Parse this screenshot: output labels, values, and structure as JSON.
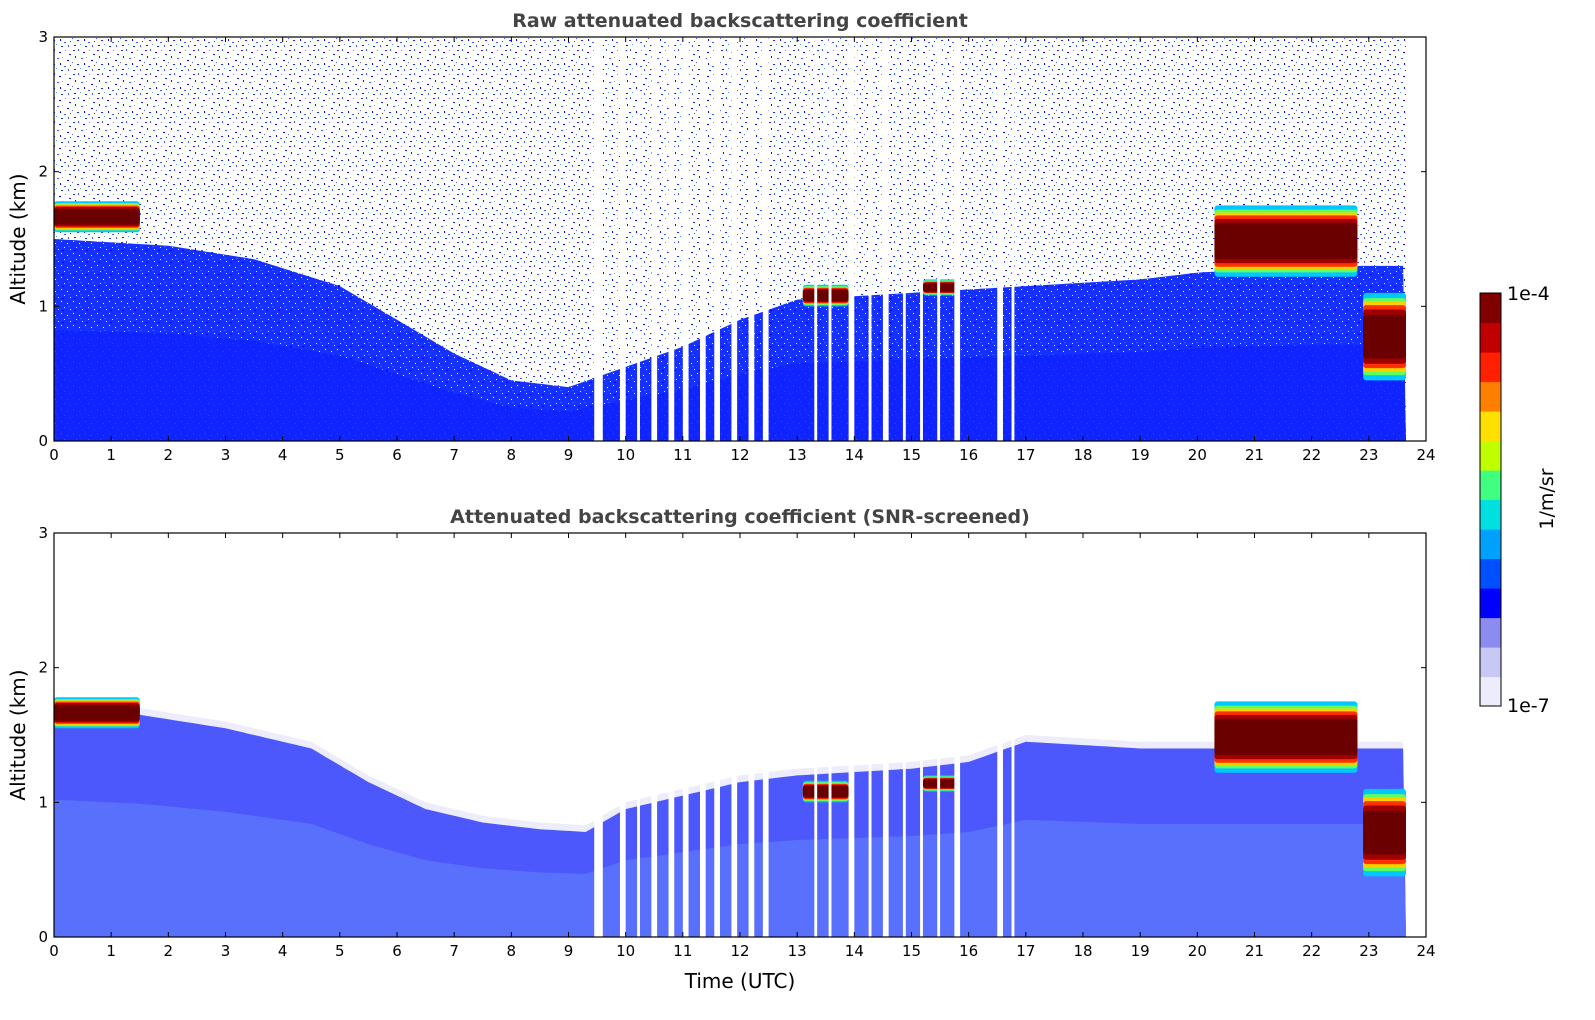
{
  "chart_data": [
    {
      "type": "heatmap",
      "title": "Raw attenuated backscattering coefficient",
      "xlabel": "",
      "ylabel": "Altitude (km)",
      "xlim": [
        0,
        24
      ],
      "ylim": [
        0,
        3
      ],
      "xticks": [
        "0",
        "1",
        "2",
        "3",
        "4",
        "5",
        "6",
        "7",
        "8",
        "9",
        "10",
        "11",
        "12",
        "13",
        "14",
        "15",
        "16",
        "17",
        "18",
        "19",
        "20",
        "21",
        "22",
        "23",
        "24"
      ],
      "yticks": [
        "0",
        "1",
        "2",
        "3"
      ],
      "data_end_hour": 23.65,
      "boundary_layer_top_km": [
        [
          0,
          1.5
        ],
        [
          2,
          1.45
        ],
        [
          3.5,
          1.35
        ],
        [
          5,
          1.15
        ],
        [
          6,
          0.9
        ],
        [
          7,
          0.65
        ],
        [
          8,
          0.45
        ],
        [
          9,
          0.4
        ],
        [
          10,
          0.55
        ],
        [
          11,
          0.7
        ],
        [
          12,
          0.9
        ],
        [
          13,
          1.05
        ],
        [
          15,
          1.1
        ],
        [
          17,
          1.15
        ],
        [
          19,
          1.2
        ],
        [
          20,
          1.25
        ],
        [
          22,
          1.3
        ],
        [
          23.65,
          1.3
        ]
      ],
      "cloud_layers": [
        {
          "start": 0.0,
          "end": 1.5,
          "base_km": 1.55,
          "top_km": 1.78,
          "level": "1e-4"
        },
        {
          "start": 13.1,
          "end": 13.9,
          "base_km": 1.0,
          "top_km": 1.16,
          "level": "1e-4"
        },
        {
          "start": 15.2,
          "end": 15.8,
          "base_km": 1.08,
          "top_km": 1.2,
          "level": "1e-4"
        },
        {
          "start": 20.3,
          "end": 22.8,
          "base_km": 1.22,
          "top_km": 1.75,
          "level": "1e-4"
        },
        {
          "start": 22.9,
          "end": 23.65,
          "base_km": 0.45,
          "top_km": 1.1,
          "level": "1e-4"
        }
      ],
      "missing_data_intervals": [
        [
          9.45,
          9.6
        ],
        [
          9.9,
          10.0
        ],
        [
          10.2,
          10.25
        ],
        [
          10.45,
          10.55
        ],
        [
          10.75,
          10.85
        ],
        [
          11.0,
          11.1
        ],
        [
          11.3,
          11.4
        ],
        [
          11.55,
          11.65
        ],
        [
          11.85,
          11.95
        ],
        [
          12.15,
          12.25
        ],
        [
          12.4,
          12.5
        ],
        [
          13.3,
          13.35
        ],
        [
          13.55,
          13.6
        ],
        [
          13.9,
          14.0
        ],
        [
          14.25,
          14.3
        ],
        [
          14.5,
          14.6
        ],
        [
          14.85,
          14.9
        ],
        [
          15.15,
          15.2
        ],
        [
          15.45,
          15.5
        ],
        [
          15.75,
          15.85
        ],
        [
          16.5,
          16.6
        ],
        [
          16.75,
          16.8
        ]
      ]
    },
    {
      "type": "heatmap",
      "title": "Attenuated backscattering coefficient (SNR-screened)",
      "xlabel": "Time (UTC)",
      "ylabel": "Altitude (km)",
      "xlim": [
        0,
        24
      ],
      "ylim": [
        0,
        3
      ],
      "xticks": [
        "0",
        "1",
        "2",
        "3",
        "4",
        "5",
        "6",
        "7",
        "8",
        "9",
        "10",
        "11",
        "12",
        "13",
        "14",
        "15",
        "16",
        "17",
        "18",
        "19",
        "20",
        "21",
        "22",
        "23",
        "24"
      ],
      "yticks": [
        "0",
        "1",
        "2",
        "3"
      ],
      "screened_top_km": [
        [
          0,
          1.7
        ],
        [
          1.5,
          1.65
        ],
        [
          3,
          1.55
        ],
        [
          4.5,
          1.4
        ],
        [
          5.5,
          1.15
        ],
        [
          6.5,
          0.95
        ],
        [
          7.5,
          0.85
        ],
        [
          8.5,
          0.8
        ],
        [
          9.3,
          0.78
        ],
        [
          10,
          0.95
        ],
        [
          11,
          1.05
        ],
        [
          12,
          1.15
        ],
        [
          13,
          1.2
        ],
        [
          15,
          1.25
        ],
        [
          16,
          1.3
        ],
        [
          17,
          1.45
        ],
        [
          19,
          1.4
        ],
        [
          20,
          1.4
        ],
        [
          23.65,
          1.4
        ]
      ]
    }
  ],
  "colorbar": {
    "label": "1/m/sr",
    "max_label": "1e-4",
    "min_label": "1e-7",
    "scale": "log",
    "colormap": [
      "#ececfa",
      "#c8c8f4",
      "#8c8cf0",
      "#0000ff",
      "#0050ff",
      "#00a0ff",
      "#00e0e0",
      "#40ff80",
      "#c0ff00",
      "#ffe000",
      "#ff8000",
      "#ff2000",
      "#c00000",
      "#800000"
    ]
  }
}
